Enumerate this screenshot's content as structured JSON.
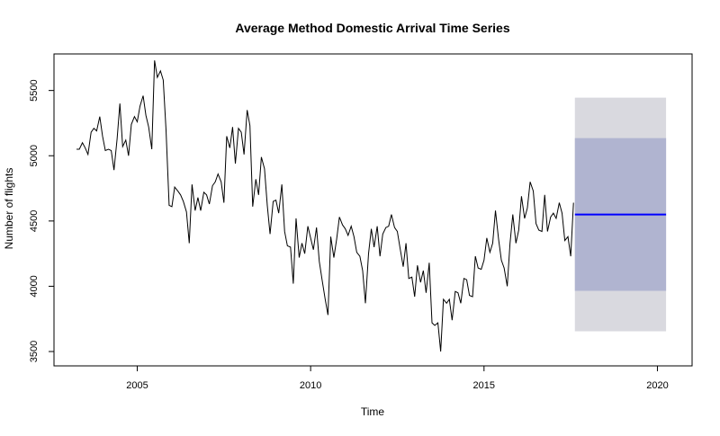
{
  "chart_data": {
    "type": "line",
    "title": "Average Method Domestic Arrival Time Series",
    "xlabel": "Time",
    "ylabel": "Number of flights",
    "xlim": [
      2002.6,
      2021.0
    ],
    "ylim": [
      3390,
      5780
    ],
    "x_ticks": [
      2005,
      2010,
      2015,
      2020
    ],
    "y_ticks": [
      3500,
      4000,
      4500,
      5000,
      5500
    ],
    "series": [
      {
        "values": [
          [
            2003.25,
            5050
          ],
          [
            2003.33,
            5050
          ],
          [
            2003.42,
            5100
          ],
          [
            2003.5,
            5060
          ],
          [
            2003.58,
            5010
          ],
          [
            2003.67,
            5180
          ],
          [
            2003.75,
            5210
          ],
          [
            2003.83,
            5190
          ],
          [
            2003.92,
            5300
          ],
          [
            2004.0,
            5150
          ],
          [
            2004.08,
            5040
          ],
          [
            2004.17,
            5050
          ],
          [
            2004.25,
            5040
          ],
          [
            2004.33,
            4890
          ],
          [
            2004.42,
            5130
          ],
          [
            2004.5,
            5400
          ],
          [
            2004.58,
            5070
          ],
          [
            2004.67,
            5120
          ],
          [
            2004.75,
            5000
          ],
          [
            2004.83,
            5240
          ],
          [
            2004.92,
            5300
          ],
          [
            2005.0,
            5260
          ],
          [
            2005.08,
            5380
          ],
          [
            2005.17,
            5460
          ],
          [
            2005.25,
            5310
          ],
          [
            2005.33,
            5220
          ],
          [
            2005.42,
            5050
          ],
          [
            2005.5,
            5730
          ],
          [
            2005.58,
            5600
          ],
          [
            2005.67,
            5650
          ],
          [
            2005.75,
            5580
          ],
          [
            2005.83,
            5200
          ],
          [
            2005.92,
            4620
          ],
          [
            2006.0,
            4610
          ],
          [
            2006.08,
            4760
          ],
          [
            2006.17,
            4730
          ],
          [
            2006.25,
            4700
          ],
          [
            2006.33,
            4650
          ],
          [
            2006.42,
            4570
          ],
          [
            2006.5,
            4330
          ],
          [
            2006.58,
            4780
          ],
          [
            2006.67,
            4580
          ],
          [
            2006.75,
            4680
          ],
          [
            2006.83,
            4580
          ],
          [
            2006.92,
            4720
          ],
          [
            2007.0,
            4700
          ],
          [
            2007.08,
            4630
          ],
          [
            2007.17,
            4770
          ],
          [
            2007.25,
            4800
          ],
          [
            2007.33,
            4860
          ],
          [
            2007.42,
            4800
          ],
          [
            2007.5,
            4640
          ],
          [
            2007.58,
            5150
          ],
          [
            2007.67,
            5060
          ],
          [
            2007.75,
            5220
          ],
          [
            2007.83,
            4940
          ],
          [
            2007.92,
            5210
          ],
          [
            2008.0,
            5180
          ],
          [
            2008.08,
            5010
          ],
          [
            2008.17,
            5350
          ],
          [
            2008.25,
            5230
          ],
          [
            2008.33,
            4610
          ],
          [
            2008.42,
            4820
          ],
          [
            2008.5,
            4700
          ],
          [
            2008.58,
            4990
          ],
          [
            2008.67,
            4900
          ],
          [
            2008.75,
            4620
          ],
          [
            2008.83,
            4400
          ],
          [
            2008.92,
            4650
          ],
          [
            2009.0,
            4660
          ],
          [
            2009.08,
            4560
          ],
          [
            2009.17,
            4780
          ],
          [
            2009.25,
            4420
          ],
          [
            2009.33,
            4310
          ],
          [
            2009.42,
            4300
          ],
          [
            2009.5,
            4020
          ],
          [
            2009.58,
            4520
          ],
          [
            2009.67,
            4220
          ],
          [
            2009.75,
            4330
          ],
          [
            2009.83,
            4250
          ],
          [
            2009.92,
            4460
          ],
          [
            2010.0,
            4370
          ],
          [
            2010.08,
            4280
          ],
          [
            2010.17,
            4450
          ],
          [
            2010.25,
            4190
          ],
          [
            2010.33,
            4050
          ],
          [
            2010.42,
            3900
          ],
          [
            2010.5,
            3780
          ],
          [
            2010.58,
            4380
          ],
          [
            2010.67,
            4220
          ],
          [
            2010.75,
            4360
          ],
          [
            2010.83,
            4530
          ],
          [
            2010.92,
            4470
          ],
          [
            2011.0,
            4440
          ],
          [
            2011.08,
            4390
          ],
          [
            2011.17,
            4460
          ],
          [
            2011.25,
            4380
          ],
          [
            2011.33,
            4260
          ],
          [
            2011.42,
            4230
          ],
          [
            2011.5,
            4120
          ],
          [
            2011.58,
            3870
          ],
          [
            2011.67,
            4250
          ],
          [
            2011.75,
            4440
          ],
          [
            2011.83,
            4300
          ],
          [
            2011.92,
            4460
          ],
          [
            2012.0,
            4230
          ],
          [
            2012.08,
            4400
          ],
          [
            2012.17,
            4450
          ],
          [
            2012.25,
            4460
          ],
          [
            2012.33,
            4550
          ],
          [
            2012.42,
            4450
          ],
          [
            2012.5,
            4420
          ],
          [
            2012.58,
            4290
          ],
          [
            2012.67,
            4150
          ],
          [
            2012.75,
            4330
          ],
          [
            2012.83,
            4060
          ],
          [
            2012.92,
            4070
          ],
          [
            2013.0,
            3920
          ],
          [
            2013.08,
            4160
          ],
          [
            2013.17,
            4030
          ],
          [
            2013.25,
            4120
          ],
          [
            2013.33,
            3950
          ],
          [
            2013.42,
            4180
          ],
          [
            2013.5,
            3720
          ],
          [
            2013.58,
            3700
          ],
          [
            2013.67,
            3720
          ],
          [
            2013.75,
            3500
          ],
          [
            2013.83,
            3900
          ],
          [
            2013.92,
            3870
          ],
          [
            2014.0,
            3900
          ],
          [
            2014.08,
            3740
          ],
          [
            2014.17,
            3960
          ],
          [
            2014.25,
            3950
          ],
          [
            2014.33,
            3870
          ],
          [
            2014.42,
            4060
          ],
          [
            2014.5,
            4050
          ],
          [
            2014.58,
            3930
          ],
          [
            2014.67,
            3920
          ],
          [
            2014.75,
            4230
          ],
          [
            2014.83,
            4140
          ],
          [
            2014.92,
            4130
          ],
          [
            2015.0,
            4200
          ],
          [
            2015.08,
            4370
          ],
          [
            2015.17,
            4260
          ],
          [
            2015.25,
            4330
          ],
          [
            2015.33,
            4580
          ],
          [
            2015.42,
            4360
          ],
          [
            2015.5,
            4200
          ],
          [
            2015.58,
            4140
          ],
          [
            2015.67,
            4000
          ],
          [
            2015.75,
            4330
          ],
          [
            2015.83,
            4550
          ],
          [
            2015.92,
            4330
          ],
          [
            2016.0,
            4430
          ],
          [
            2016.08,
            4690
          ],
          [
            2016.17,
            4520
          ],
          [
            2016.25,
            4600
          ],
          [
            2016.33,
            4800
          ],
          [
            2016.42,
            4730
          ],
          [
            2016.5,
            4480
          ],
          [
            2016.58,
            4430
          ],
          [
            2016.67,
            4420
          ],
          [
            2016.75,
            4700
          ],
          [
            2016.83,
            4420
          ],
          [
            2016.92,
            4530
          ],
          [
            2017.0,
            4560
          ],
          [
            2017.08,
            4520
          ],
          [
            2017.17,
            4640
          ],
          [
            2017.25,
            4560
          ],
          [
            2017.33,
            4350
          ],
          [
            2017.42,
            4380
          ],
          [
            2017.5,
            4230
          ],
          [
            2017.58,
            4640
          ]
        ]
      }
    ],
    "forecast": {
      "x_start": 2017.62,
      "x_end": 2020.25,
      "mean": 4550,
      "interval_80": [
        3965,
        5135
      ],
      "interval_95": [
        3655,
        5445
      ]
    },
    "colors": {
      "series": "#000000",
      "forecast_line": "#0000ff",
      "interval_80": "#b0b4d0",
      "interval_95": "#d9d9df",
      "axis": "#000000"
    },
    "grid": false,
    "legend": "none"
  }
}
